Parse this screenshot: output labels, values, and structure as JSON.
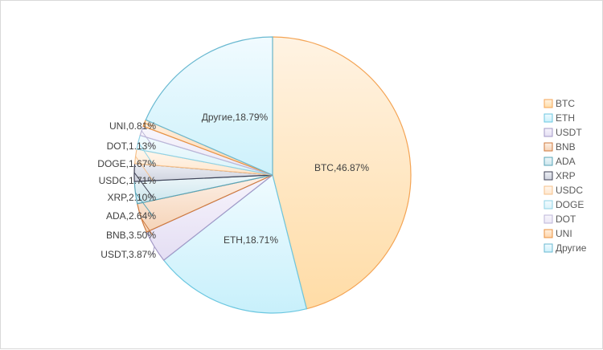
{
  "chart_data": {
    "type": "pie",
    "title": "",
    "legend_position": "right",
    "series": [
      {
        "name": "BTC",
        "value": 46.87,
        "label": "BTC,46.87%",
        "stroke": "#f4a454",
        "fill_light": "#fff3e3",
        "fill_dark": "#ffdca6"
      },
      {
        "name": "ETH",
        "value": 18.71,
        "label": "ETH,18.71%",
        "stroke": "#6cc7e0",
        "fill_light": "#f0fbff",
        "fill_dark": "#c8f0fb"
      },
      {
        "name": "USDT",
        "value": 3.87,
        "label": "USDT,3.87%",
        "stroke": "#a399c7",
        "fill_light": "#f7f4fc",
        "fill_dark": "#e4def3"
      },
      {
        "name": "BNB",
        "value": 3.5,
        "label": "BNB,3.50%",
        "stroke": "#cf7a3e",
        "fill_light": "#fdf0e6",
        "fill_dark": "#f5d3b7"
      },
      {
        "name": "ADA",
        "value": 2.64,
        "label": "ADA,2.64%",
        "stroke": "#5aa5b8",
        "fill_light": "#eef7fa",
        "fill_dark": "#cbe5ec"
      },
      {
        "name": "XRP",
        "value": 2.1,
        "label": "XRP,2.10%",
        "stroke": "#3f4256",
        "fill_light": "#eceef4",
        "fill_dark": "#cfd3df"
      },
      {
        "name": "USDC",
        "value": 1.71,
        "label": "USDC,1.71%",
        "stroke": "#f6c08a",
        "fill_light": "#fff7ee",
        "fill_dark": "#ffe7cd"
      },
      {
        "name": "DOGE",
        "value": 1.67,
        "label": "DOGE,1.67%",
        "stroke": "#8fd3e6",
        "fill_light": "#f3fbfe",
        "fill_dark": "#d9f3fa"
      },
      {
        "name": "DOT",
        "value": 1.13,
        "label": "DOT,1.13%",
        "stroke": "#bdb6d8",
        "fill_light": "#f8f6fc",
        "fill_dark": "#ebe7f6"
      },
      {
        "name": "UNI",
        "value": 0.81,
        "label": "UNI,0.81%",
        "stroke": "#e8913f",
        "fill_light": "#fff0e0",
        "fill_dark": "#ffd4a8"
      },
      {
        "name": "Другие",
        "value": 18.79,
        "label": "Другие,18.79%",
        "stroke": "#6ab9d1",
        "fill_light": "#f1fbff",
        "fill_dark": "#cdf1fb"
      }
    ]
  }
}
